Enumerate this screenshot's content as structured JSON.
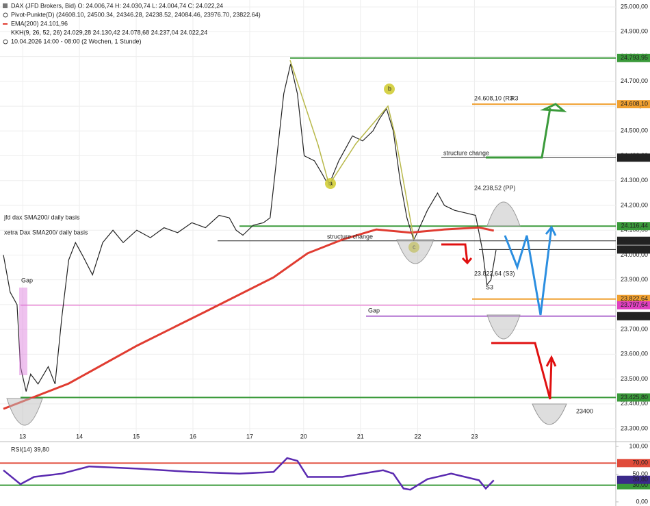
{
  "chart_data": [
    {
      "type": "line",
      "header": [
        "DAX (JFD Brokers, Bid)  O: 24.006,74  H: 24.030,74  L: 24.004,74  C: 24.022,24",
        "Pivot-Punkte(D)  (24608.10, 24500.34, 24346.28, 24238.52, 24084.46, 23976.70, 23822.64)",
        "EMA(200)  24.101,96",
        "KKH(9, 26, 52, 26)  24.029,28  24.130,42  24.078,68  24.237,04  24.022,24",
        "10.04.2026 14:00 - 08:00  (2 Wochen, 1 Stunde)"
      ],
      "xlim": [
        -0.4,
        10.45
      ],
      "xticks": [
        {
          "value": 0,
          "label": "13"
        },
        {
          "value": 1,
          "label": "14"
        },
        {
          "value": 2,
          "label": "15"
        },
        {
          "value": 3,
          "label": "16"
        },
        {
          "value": 4,
          "label": "17"
        },
        {
          "value": 4.95,
          "label": "20"
        },
        {
          "value": 5.95,
          "label": "21"
        },
        {
          "value": 6.96,
          "label": "22"
        },
        {
          "value": 7.96,
          "label": "23"
        }
      ],
      "ylim": [
        23256,
        25028
      ],
      "yticks": [
        {
          "value": 25000,
          "label": "25.000,00"
        },
        {
          "value": 24900,
          "label": "24.900,00"
        },
        {
          "value": 24800,
          "label": "24.800,00"
        },
        {
          "value": 24700,
          "label": "24.700,00"
        },
        {
          "value": 24600,
          "label": "24.600,00"
        },
        {
          "value": 24500,
          "label": "24.500,00"
        },
        {
          "value": 24400,
          "label": "24.400,00"
        },
        {
          "value": 24300,
          "label": "24.300,00"
        },
        {
          "value": 24200,
          "label": "24.200,00"
        },
        {
          "value": 24100,
          "label": "24.100,00"
        },
        {
          "value": 24000,
          "label": "24.000,00"
        },
        {
          "value": 23900,
          "label": "23.900,00"
        },
        {
          "value": 23800,
          "label": "23.800,00"
        },
        {
          "value": 23700,
          "label": "23.700,00"
        },
        {
          "value": 23600,
          "label": "23.600,00"
        },
        {
          "value": 23500,
          "label": "23.500,00"
        },
        {
          "value": 23400,
          "label": "23.400,00"
        },
        {
          "value": 23300,
          "label": "23.300,00"
        }
      ],
      "grid": true,
      "series": [
        {
          "color": "#222222",
          "x": [
            -0.34,
            -0.22,
            -0.1,
            -0.04,
            0.06,
            0.14,
            0.27,
            0.45,
            0.57,
            0.69,
            0.81,
            0.93,
            1.05,
            1.23,
            1.41,
            1.59,
            1.77,
            2.01,
            2.25,
            2.49,
            2.73,
            2.98,
            3.22,
            3.46,
            3.64,
            3.76,
            3.88,
            4.06,
            4.24,
            4.36,
            4.48,
            4.6,
            4.72,
            4.84,
            4.96,
            5.14,
            5.27,
            5.39,
            5.57,
            5.69,
            5.81,
            5.99,
            6.17,
            6.29,
            6.41,
            6.53,
            6.65,
            6.77,
            6.89,
            7.01,
            7.13,
            7.31,
            7.43,
            7.61,
            7.8,
            7.98,
            8.1,
            8.18,
            8.25,
            8.34
          ],
          "values": [
            24000,
            23850,
            23800,
            23550,
            23450,
            23520,
            23480,
            23550,
            23480,
            23750,
            23980,
            24050,
            24000,
            23920,
            24050,
            24100,
            24050,
            24100,
            24070,
            24110,
            24090,
            24130,
            24110,
            24160,
            24150,
            24100,
            24080,
            24120,
            24130,
            24150,
            24400,
            24650,
            24770,
            24650,
            24400,
            24380,
            24330,
            24280,
            24380,
            24430,
            24480,
            24460,
            24500,
            24550,
            24590,
            24500,
            24300,
            24150,
            24060,
            24120,
            24180,
            24250,
            24200,
            24180,
            24170,
            24160,
            24020,
            23880,
            23900,
            24020
          ]
        },
        {
          "color": "#e03c31",
          "x": [
            -0.34,
            0.81,
            2.01,
            3.22,
            4.42,
            5.02,
            5.63,
            6.23,
            6.83,
            7.43,
            8.04,
            8.3
          ],
          "values": [
            23380,
            23482,
            23634,
            23772,
            23910,
            24007,
            24062,
            24103,
            24090,
            24103,
            24111,
            24098
          ]
        }
      ],
      "levels": [
        {
          "value": 24793.95,
          "label": "24.793,95",
          "color": "#3a9a3a"
        },
        {
          "value": 24608.1,
          "label": "24.608,10",
          "color": "#f0a030"
        },
        {
          "value": 24392.59,
          "label": "24.392,59",
          "color": "#222222"
        },
        {
          "value": 24116.44,
          "label": "24.116,44",
          "color": "#3a9a3a"
        },
        {
          "value": 24057.24,
          "label": "24.057,24",
          "color": "#222222"
        },
        {
          "value": 24022.24,
          "label": "24.022,24",
          "color": "#222222"
        },
        {
          "value": 23822.64,
          "label": "23.822,64",
          "color": "#f0a030"
        },
        {
          "value": 23797.64,
          "label": "23.797,64",
          "color": "#e040c0"
        },
        {
          "value": 23753.5,
          "label": "23.753,50",
          "color": "#222222"
        },
        {
          "value": 23425.8,
          "label": "23.425,80",
          "color": "#3a9a3a"
        }
      ],
      "annotations": [
        "jfd dax SMA200/ daily basis",
        "xetra Dax SMA200/ daily basis",
        "structure change",
        "structure change",
        "Gap",
        "Gap",
        "a",
        "b",
        "c",
        "24.608,10 (R3",
        "R3",
        "24.238,52 (PP)",
        "23.822,64 (S3)",
        "S3",
        "23400"
      ]
    },
    {
      "type": "line",
      "title": "RSI(14)  39,80",
      "xlim": [
        -0.4,
        10.45
      ],
      "ylim": [
        -5,
        105
      ],
      "yticks": [
        {
          "value": 100,
          "label": "100,00"
        },
        {
          "value": 70,
          "label": "70,00"
        },
        {
          "value": 50,
          "label": "50,00"
        },
        {
          "value": 0,
          "label": "0,00"
        }
      ],
      "levels": [
        {
          "value": 70,
          "label": "70,00",
          "color": "#e04b3a"
        },
        {
          "value": 30,
          "label": "30,00",
          "color": "#3a9a3a"
        },
        {
          "value": 39.8,
          "label": "39,80",
          "color": "#3b2a8a"
        }
      ],
      "series": [
        {
          "color": "#5a2ab0",
          "x": [
            -0.34,
            -0.04,
            0.2,
            0.69,
            1.17,
            2.01,
            2.98,
            3.82,
            4.42,
            4.66,
            4.84,
            5.02,
            5.63,
            6.35,
            6.53,
            6.71,
            6.83,
            7.13,
            7.55,
            8.04,
            8.16,
            8.3
          ],
          "values": [
            57,
            32,
            45,
            51,
            64,
            60,
            54,
            51,
            54,
            79,
            74,
            45,
            45,
            57,
            51,
            24,
            22,
            41,
            51,
            39,
            24,
            39
          ]
        }
      ]
    }
  ]
}
